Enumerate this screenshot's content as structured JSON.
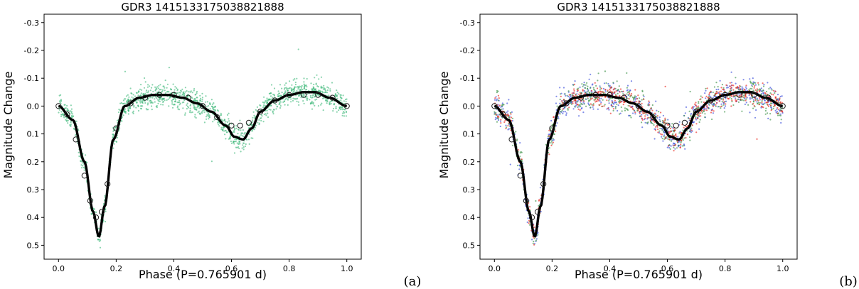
{
  "chart_data": [
    {
      "panel": "a",
      "type": "scatter",
      "title": "GDR3 1415133175038821888",
      "xlabel": "Phase (P=0.765901 d)",
      "ylabel": "Magnitude Change",
      "xlim": [
        -0.05,
        1.05
      ],
      "ylim": [
        -0.33,
        0.55
      ],
      "y_inverted": true,
      "xticks": [
        "0.0",
        "0.2",
        "0.4",
        "0.6",
        "0.8",
        "1.0"
      ],
      "yticks": [
        "-0.3",
        "-0.2",
        "-0.1",
        "0.0",
        "0.1",
        "0.2",
        "0.3",
        "0.4",
        "0.5"
      ],
      "series": [
        {
          "name": "observations",
          "kind": "points",
          "color": "#3cb878",
          "scatter_sigma": 0.04
        },
        {
          "name": "binned mean",
          "kind": "open-circles",
          "color": "#1f1f1f"
        },
        {
          "name": "model fit",
          "kind": "line",
          "color": "#000000"
        }
      ],
      "model_curve": {
        "phase": [
          0.0,
          0.05,
          0.09,
          0.12,
          0.14,
          0.16,
          0.19,
          0.23,
          0.28,
          0.33,
          0.38,
          0.43,
          0.48,
          0.53,
          0.58,
          0.61,
          0.64,
          0.67,
          0.7,
          0.75,
          0.8,
          0.85,
          0.89,
          0.94,
          1.0
        ],
        "magnitude": [
          0.0,
          0.05,
          0.2,
          0.38,
          0.47,
          0.36,
          0.12,
          0.0,
          -0.03,
          -0.04,
          -0.04,
          -0.03,
          -0.01,
          0.02,
          0.07,
          0.11,
          0.12,
          0.08,
          0.02,
          -0.02,
          -0.04,
          -0.05,
          -0.05,
          -0.03,
          0.0
        ]
      },
      "binned_mean": {
        "phase": [
          0.0,
          0.03,
          0.06,
          0.09,
          0.11,
          0.13,
          0.15,
          0.17,
          0.2,
          0.25,
          0.3,
          0.35,
          0.4,
          0.45,
          0.5,
          0.55,
          0.6,
          0.63,
          0.66,
          0.7,
          0.75,
          0.8,
          0.85,
          0.9,
          0.95,
          1.0
        ],
        "magnitude": [
          0.0,
          0.03,
          0.12,
          0.25,
          0.34,
          0.4,
          0.38,
          0.28,
          0.08,
          -0.01,
          -0.03,
          -0.04,
          -0.04,
          -0.03,
          0.0,
          0.04,
          0.07,
          0.07,
          0.06,
          0.02,
          -0.02,
          -0.04,
          -0.04,
          -0.04,
          -0.03,
          0.0
        ]
      }
    },
    {
      "panel": "b",
      "type": "scatter",
      "title": "GDR3 1415133175038821888",
      "xlabel": "Phase (P=0.765901 d)",
      "ylabel": "Magnitude Change",
      "xlim": [
        -0.05,
        1.05
      ],
      "ylim": [
        -0.33,
        0.55
      ],
      "y_inverted": true,
      "xticks": [
        "0.0",
        "0.2",
        "0.4",
        "0.6",
        "0.8",
        "1.0"
      ],
      "yticks": [
        "-0.3",
        "-0.2",
        "-0.1",
        "0.0",
        "0.1",
        "0.2",
        "0.3",
        "0.4",
        "0.5"
      ],
      "series": [
        {
          "name": "observations (blue)",
          "kind": "points",
          "color": "#2b3fd8",
          "scatter_sigma": 0.05
        },
        {
          "name": "observations (green)",
          "kind": "points",
          "color": "#2e8b3a",
          "scatter_sigma": 0.045
        },
        {
          "name": "observations (red)",
          "kind": "points",
          "color": "#e8160c",
          "scatter_sigma": 0.035
        },
        {
          "name": "binned mean",
          "kind": "open-circles",
          "color": "#1f1f1f"
        },
        {
          "name": "model fit",
          "kind": "line",
          "color": "#000000"
        }
      ],
      "model_curve": {
        "phase": [
          0.0,
          0.05,
          0.09,
          0.12,
          0.14,
          0.16,
          0.19,
          0.23,
          0.28,
          0.33,
          0.38,
          0.43,
          0.48,
          0.53,
          0.58,
          0.61,
          0.64,
          0.67,
          0.7,
          0.75,
          0.8,
          0.85,
          0.89,
          0.94,
          1.0
        ],
        "magnitude": [
          0.0,
          0.05,
          0.2,
          0.38,
          0.47,
          0.36,
          0.12,
          0.0,
          -0.03,
          -0.04,
          -0.04,
          -0.03,
          -0.01,
          0.02,
          0.07,
          0.11,
          0.12,
          0.08,
          0.02,
          -0.02,
          -0.04,
          -0.05,
          -0.05,
          -0.03,
          0.0
        ]
      },
      "binned_mean": {
        "phase": [
          0.0,
          0.03,
          0.06,
          0.09,
          0.11,
          0.13,
          0.15,
          0.17,
          0.2,
          0.25,
          0.3,
          0.35,
          0.4,
          0.45,
          0.5,
          0.55,
          0.6,
          0.63,
          0.66,
          0.7,
          0.75,
          0.8,
          0.85,
          0.9,
          0.95,
          1.0
        ],
        "magnitude": [
          0.0,
          0.03,
          0.12,
          0.25,
          0.34,
          0.4,
          0.38,
          0.28,
          0.08,
          -0.01,
          -0.03,
          -0.04,
          -0.04,
          -0.03,
          0.0,
          0.04,
          0.07,
          0.07,
          0.06,
          0.02,
          -0.02,
          -0.04,
          -0.04,
          -0.04,
          -0.03,
          0.0
        ]
      }
    }
  ],
  "subfigure_labels": [
    "(a)",
    "(b)"
  ]
}
